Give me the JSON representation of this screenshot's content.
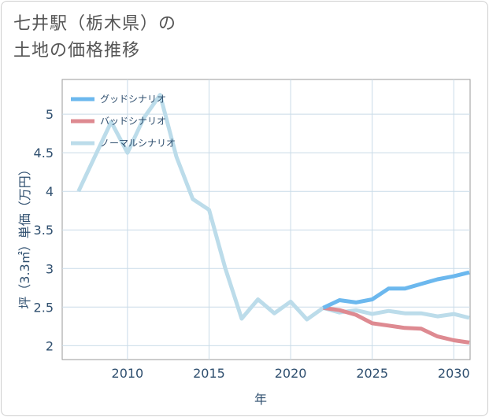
{
  "title": {
    "line1": "七井駅（栃木県）の",
    "line2": "土地の価格推移"
  },
  "chart_data": {
    "type": "line",
    "xlabel": "年",
    "ylabel": "坪（3.3㎡）単価（万円）",
    "xlim": [
      2006,
      2031
    ],
    "ylim": [
      1.82,
      5.45
    ],
    "x_ticks": [
      2010,
      2015,
      2020,
      2025,
      2030
    ],
    "y_ticks": [
      2,
      2.5,
      3,
      3.5,
      4,
      4.5,
      5
    ],
    "x_tick_labels": [
      "2010",
      "2015",
      "2020",
      "2025",
      "2030"
    ],
    "y_tick_labels": [
      "2",
      "2.5",
      "3",
      "3.5",
      "4",
      "4.5",
      "5"
    ],
    "grid": true,
    "legend_position": "top-left",
    "series": [
      {
        "name": "グッドシナリオ",
        "color": "#6cb8ee",
        "x": [
          2022,
          2023,
          2024,
          2025,
          2026,
          2027,
          2028,
          2029,
          2030,
          2031
        ],
        "y": [
          2.49,
          2.59,
          2.56,
          2.6,
          2.74,
          2.74,
          2.8,
          2.86,
          2.9,
          2.95
        ]
      },
      {
        "name": "バッドシナリオ",
        "color": "#de8a91",
        "x": [
          2022,
          2023,
          2024,
          2025,
          2026,
          2027,
          2028,
          2029,
          2030,
          2031
        ],
        "y": [
          2.49,
          2.46,
          2.4,
          2.29,
          2.26,
          2.23,
          2.22,
          2.12,
          2.07,
          2.04
        ]
      },
      {
        "name": "ノーマルシナリオ",
        "color": "#bcdcea",
        "x": [
          2007,
          2008,
          2009,
          2010,
          2011,
          2012,
          2013,
          2014,
          2015,
          2016,
          2017,
          2018,
          2019,
          2020,
          2021,
          2022,
          2023,
          2024,
          2025,
          2026,
          2027,
          2028,
          2029,
          2030,
          2031
        ],
        "y": [
          4.0,
          4.45,
          4.9,
          4.5,
          4.95,
          5.25,
          4.45,
          3.9,
          3.76,
          3.0,
          2.35,
          2.6,
          2.42,
          2.57,
          2.34,
          2.49,
          2.43,
          2.46,
          2.41,
          2.45,
          2.42,
          2.42,
          2.38,
          2.41,
          2.36
        ]
      }
    ]
  }
}
